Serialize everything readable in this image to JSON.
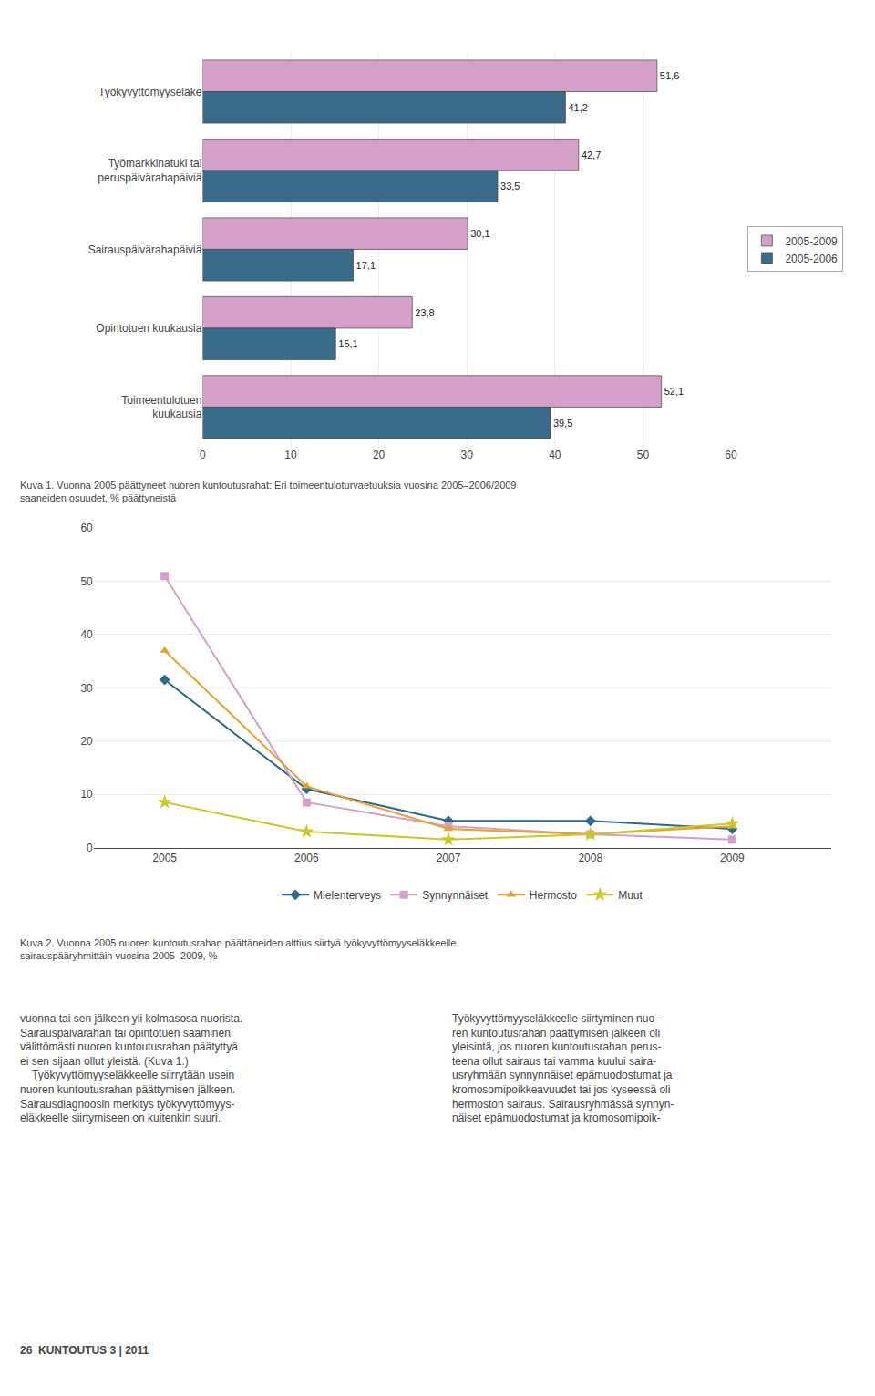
{
  "chart_data": [
    {
      "type": "bar",
      "orientation": "horizontal",
      "categories": [
        "Työkyvyttömyyseläke",
        "Työmarkkinatuki tai\nperuspäivärahapäiviä",
        "Sairauspäivärahapäiviä",
        "Opintotuen kuukausia",
        "Toimeentulotuen\nkuukausia"
      ],
      "series": [
        {
          "name": "2005-2009",
          "color": "#d4a0c8",
          "values": [
            51.6,
            42.7,
            30.1,
            23.8,
            52.1
          ],
          "value_labels": [
            "51,6",
            "42,7",
            "30,1",
            "23,8",
            "52,1"
          ]
        },
        {
          "name": "2005-2006",
          "color": "#3a6b8a",
          "values": [
            41.2,
            33.5,
            17.1,
            15.1,
            39.5
          ],
          "value_labels": [
            "41,2",
            "33,5",
            "17,1",
            "15,1",
            "39,5"
          ]
        }
      ],
      "xlim": [
        0,
        60
      ],
      "xticks": [
        0,
        10,
        20,
        30,
        40,
        50,
        60
      ],
      "grid": "x",
      "data_labels": true,
      "legend": "right",
      "annotations": [
        "Kuva 1. Vuonna 2005 päättyneet nuoren kuntoutusrahat: Eri toimeentuloturvaetuuksia vuosina 2005–2006/2009\nsaaneiden osuudet, % päättyneistä"
      ]
    },
    {
      "type": "line",
      "x": [
        2005,
        2006,
        2007,
        2008,
        2009
      ],
      "series": [
        {
          "name": "Mielenterveys",
          "color": "#2b6a8a",
          "marker": "diamond",
          "values": [
            31.5,
            11.0,
            5.0,
            5.0,
            3.5
          ]
        },
        {
          "name": "Synnynnäiset",
          "color": "#d4a0c8",
          "marker": "square",
          "values": [
            51.0,
            8.5,
            4.0,
            2.5,
            1.5
          ]
        },
        {
          "name": "Hermosto",
          "color": "#e8a030",
          "marker": "triangle-up",
          "values": [
            37.0,
            11.5,
            3.5,
            2.5,
            4.0
          ]
        },
        {
          "name": "Muut",
          "color": "#c8c828",
          "marker": "star",
          "values": [
            8.5,
            3.0,
            1.5,
            2.5,
            4.5
          ]
        }
      ],
      "xlim": [
        2004.5,
        2009.7
      ],
      "xticks": [
        2005,
        2006,
        2007,
        2008,
        2009
      ],
      "ylim": [
        0,
        60
      ],
      "yticks": [
        0,
        10,
        20,
        30,
        40,
        50,
        60
      ],
      "grid": "y",
      "legend": "bottom",
      "annotations": [
        "Kuva 2. Vuonna 2005 nuoren kuntoutusrahan päättäneiden alttius siirtyä työkyvyttömyyseläkkeelle\nsairauspääryhmittäin vuosina 2005–2009, %"
      ]
    }
  ],
  "annotations": [
    "vuonna tai sen jälkeen yli kolmasosa nuorista.\nSairauspäivärahan tai opintotuen saaminen\nvälittömästi nuoren kuntoutusrahan päätyttyä\nei sen sijaan ollut yleistä. (Kuva 1.)\n    Työkyvyttömyyseläkkeelle siirrytään usein\nnuoren kuntoutusrahan päättymisen jälkeen.\nSairausdiagnoosin merkitys työkyvyttömyys-\neläkkeelle siirtymiseen on kuitenkin suuri.",
    "Työkyvyttömyyseläkkeelle siirtyminen nuo-\nren kuntoutusrahan päättymisen jälkeen oli\nyleisintä, jos nuoren kuntoutusrahan perus-\nteena ollut sairaus tai vamma kuului saira-\nusryhmään synnynnäiset epämuodostumat ja\nkromosomipoikkeavuudet tai jos kyseessä oli\nhermoston sairaus. Sairausryhmässä synnyn-\nnäiset epämuodostumat ja kromosomipoik-",
    "26  KUNTOUTUS 3 | 2011"
  ]
}
